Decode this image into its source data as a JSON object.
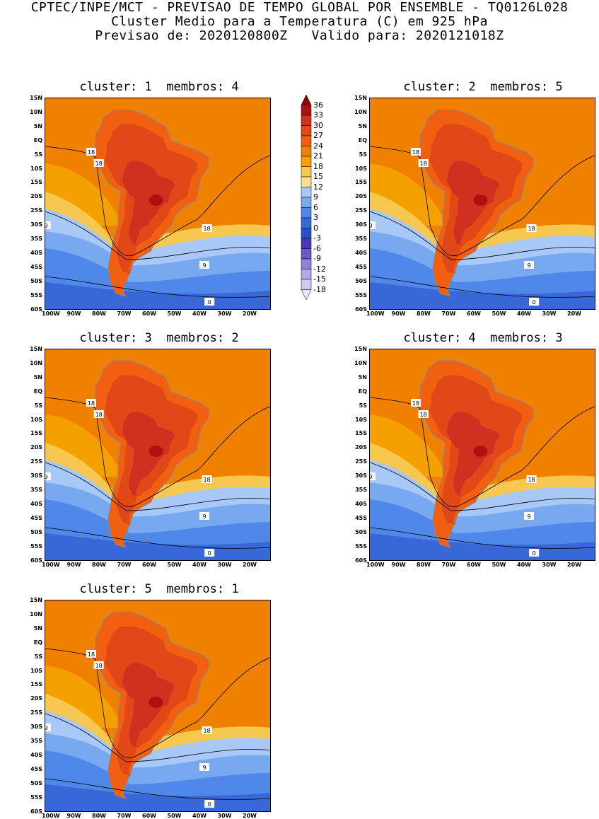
{
  "header": {
    "line1": "CPTEC/INPE/MCT - PREVISAO DE TEMPO GLOBAL POR ENSEMBLE - TQ0126L028",
    "line2": "Cluster Medio para a Temperatura (C) em 925 hPa",
    "line3": "Previsao de: 2020120800Z   Valido para: 2020121018Z"
  },
  "panels": [
    {
      "title": "cluster: 1  membros: 4"
    },
    {
      "title": "cluster: 2  membros: 5"
    },
    {
      "title": "cluster: 3  membros: 2"
    },
    {
      "title": "cluster: 4  membros: 3"
    },
    {
      "title": "cluster: 5  membros: 1"
    }
  ],
  "axes": {
    "lat_labels": [
      "15N",
      "10N",
      "5N",
      "EQ",
      "5S",
      "10S",
      "15S",
      "20S",
      "25S",
      "30S",
      "35S",
      "40S",
      "45S",
      "50S",
      "55S",
      "60S"
    ],
    "lon_labels": [
      "100W",
      "90W",
      "80W",
      "70W",
      "60W",
      "50W",
      "40W",
      "30W",
      "20W"
    ]
  },
  "contour_labels": [
    "18",
    "18",
    "9",
    "18",
    "9",
    "0"
  ],
  "colorbar": {
    "levels": [
      "36",
      "33",
      "30",
      "27",
      "24",
      "21",
      "18",
      "15",
      "12",
      "9",
      "6",
      "3",
      "0",
      "-3",
      "-6",
      "-9",
      "-12",
      "-15",
      "-18"
    ],
    "colors": [
      "#8b0000",
      "#b01010",
      "#d03020",
      "#e04818",
      "#f06010",
      "#f08000",
      "#f4a000",
      "#f7c850",
      "#f8e090",
      "#a8c8f8",
      "#78a8f0",
      "#4f88e8",
      "#3868d8",
      "#2850c8",
      "#4838b8",
      "#7058c8",
      "#9080d8",
      "#b0a8e8",
      "#d0c8f0",
      "#e8e4f8"
    ]
  }
}
